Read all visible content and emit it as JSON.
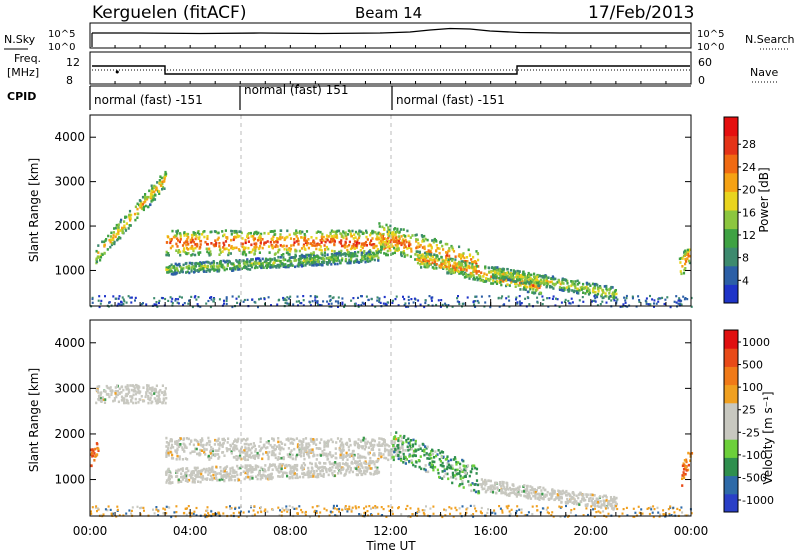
{
  "header": {
    "station": "Kerguelen (fitACF)",
    "beam": "Beam 14",
    "date": "17/Feb/2013"
  },
  "nsky_panel": {
    "left_label": "N.Sky",
    "left_ticks": [
      "10^5",
      "10^0"
    ],
    "right_ticks": [
      "10^5",
      "10^0"
    ],
    "right_label": "N.Search"
  },
  "freq_panel": {
    "left_label_1": "Freq.",
    "left_label_2": "[MHz]",
    "left_ticks": [
      "12",
      "8"
    ],
    "right_ticks": [
      "60",
      "0"
    ],
    "right_label": "Nave"
  },
  "cpid_panel": {
    "label": "CPID",
    "segments": [
      "normal (fast) -151",
      "normal (fast) 151",
      "normal (fast) -151"
    ]
  },
  "chart_data": [
    {
      "type": "heatmap",
      "panel": "power",
      "ylabel": "Slant Range [km]",
      "ylim": [
        200,
        4500
      ],
      "y_ticks": [
        "1000",
        "2000",
        "3000",
        "4000"
      ],
      "x_range_hours": [
        0,
        24
      ],
      "colorbar": {
        "label": "Power [dB]",
        "ticks": [
          "4",
          "8",
          "12",
          "16",
          "20",
          "24",
          "28"
        ],
        "colors": [
          "#1f34c8",
          "#2c5fa6",
          "#3d8a6e",
          "#3fa243",
          "#8cc63f",
          "#e9d41e",
          "#f5a214",
          "#f06a12",
          "#e43317",
          "#e50f0f"
        ]
      },
      "bands": [
        {
          "t_start": 0.2,
          "t_end": 3.0,
          "r_start": 1350,
          "r_end": 3100,
          "r_end2": 1550,
          "thickness": 200,
          "level": 20
        },
        {
          "t_start": 3.0,
          "t_end": 12.5,
          "r_start": 1650,
          "r_end": 1650,
          "thickness": 280,
          "level": 26
        },
        {
          "t_start": 3.0,
          "t_end": 11.5,
          "r_start": 1050,
          "r_end": 1350,
          "thickness": 120,
          "level": 12
        },
        {
          "t_start": 11.5,
          "t_end": 15.5,
          "r_start": 1800,
          "r_end": 1150,
          "thickness": 320,
          "level": 24
        },
        {
          "t_start": 13.0,
          "t_end": 18.0,
          "r_start": 1300,
          "r_end": 650,
          "thickness": 180,
          "level": 22
        },
        {
          "t_start": 16.0,
          "t_end": 21.0,
          "r_start": 1000,
          "r_end": 500,
          "thickness": 140,
          "level": 16
        },
        {
          "t_start": 23.5,
          "t_end": 24.0,
          "r_start": 1050,
          "r_end": 1500,
          "thickness": 250,
          "level": 22
        }
      ]
    },
    {
      "type": "heatmap",
      "panel": "velocity",
      "ylabel": "Slant Range [km]",
      "xlabel": "Time UT",
      "ylim": [
        200,
        4500
      ],
      "y_ticks": [
        "1000",
        "2000",
        "3000",
        "4000"
      ],
      "x_range_hours": [
        0,
        24
      ],
      "x_ticks": [
        "00:00",
        "04:00",
        "08:00",
        "12:00",
        "16:00",
        "20:00",
        "00:00"
      ],
      "colorbar": {
        "label": "Velocity [m s⁻¹]",
        "ticks": [
          "1000",
          "500",
          "100",
          "25",
          "-25",
          "-100",
          "-500",
          "-1000"
        ],
        "colors": [
          "#2a3fc7",
          "#2e6aa8",
          "#2f8f4e",
          "#6ccf3a",
          "#c8c8c0",
          "#c8c8c0",
          "#f0a020",
          "#f07a18",
          "#e84a18",
          "#e01010"
        ]
      },
      "bands": [
        {
          "t_start": 0.2,
          "t_end": 3.0,
          "r_start": 2900,
          "r_end": 2900,
          "thickness": 200,
          "level": "ground"
        },
        {
          "t_start": 3.0,
          "t_end": 12.5,
          "r_start": 1700,
          "r_end": 1700,
          "thickness": 240,
          "level": "ground"
        },
        {
          "t_start": 3.0,
          "t_end": 11.5,
          "r_start": 1100,
          "r_end": 1300,
          "thickness": 160,
          "level": "ground"
        },
        {
          "t_start": 12.0,
          "t_end": 15.5,
          "r_start": 1800,
          "r_end": 1000,
          "thickness": 300,
          "level": "positive"
        },
        {
          "t_start": 15.5,
          "t_end": 21.0,
          "r_start": 900,
          "r_end": 500,
          "thickness": 140,
          "level": "ground"
        },
        {
          "t_start": 0.0,
          "t_end": 0.3,
          "r_start": 1500,
          "r_end": 1700,
          "thickness": 200,
          "level": "negative"
        },
        {
          "t_start": 23.6,
          "t_end": 24.0,
          "r_start": 1100,
          "r_end": 1600,
          "thickness": 220,
          "level": "negative"
        }
      ]
    }
  ]
}
